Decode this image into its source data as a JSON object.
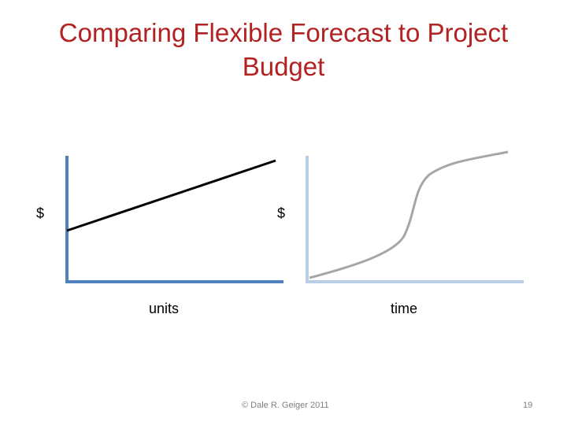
{
  "slide": {
    "title_line1": "Comparing Flexible Forecast to Project",
    "title_line2": "Budget"
  },
  "left_panel": {
    "y_label": "$",
    "x_label": "units",
    "axis_color": "#4f81bd",
    "line_color": "#000000"
  },
  "right_panel": {
    "y_label": "$",
    "x_label": "time",
    "axis_color": "#b9cde5",
    "curve_color": "#a6a6a6"
  },
  "footer": {
    "copyright": "© Dale R. Geiger 2011",
    "page_number": "19"
  }
}
